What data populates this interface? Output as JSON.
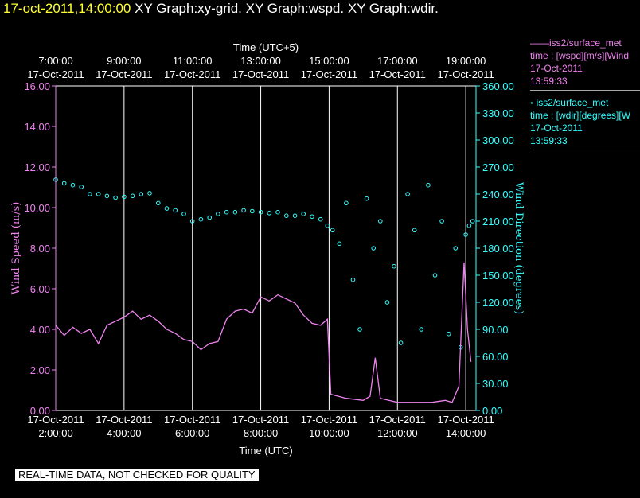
{
  "header": {
    "timestamp": "17-oct-2011,14:00:00",
    "graphs": "XY Graph:xy-grid.  XY Graph:wspd.  XY Graph:wdir."
  },
  "footer": {
    "qc_note": "REAL-TIME DATA, NOT CHECKED FOR QUALITY"
  },
  "legend": [
    {
      "marker": "——",
      "name": "iss2/surface_met",
      "desc": "time : [wspd][m/s][Wind",
      "date": "17-Oct-2011",
      "time": "13:59:33"
    },
    {
      "marker": "◦",
      "name": "iss2/surface_met",
      "desc": "time : [wdir][degrees][W",
      "date": "17-Oct-2011",
      "time": "13:59:33"
    }
  ],
  "colors": {
    "wspd": "#ee82ee",
    "wdir": "#33ffff",
    "title_time": "#ffff33",
    "grid": "#ffffff",
    "background": "#000000"
  },
  "chart_data": {
    "type": "line",
    "x_bottom_label": "Time (UTC)",
    "x_top_label": "Time (UTC+5)",
    "x_range_hours_utc": [
      2,
      14.3
    ],
    "x_bottom_ticks": [
      {
        "x": 2,
        "date": "17-Oct-2011",
        "time": "2:00:00"
      },
      {
        "x": 4,
        "date": "17-Oct-2011",
        "time": "4:00:00"
      },
      {
        "x": 6,
        "date": "17-Oct-2011",
        "time": "6:00:00"
      },
      {
        "x": 8,
        "date": "17-Oct-2011",
        "time": "8:00:00"
      },
      {
        "x": 10,
        "date": "17-Oct-2011",
        "time": "10:00:00"
      },
      {
        "x": 12,
        "date": "17-Oct-2011",
        "time": "12:00:00"
      },
      {
        "x": 14,
        "date": "17-Oct-2011",
        "time": "14:00:00"
      }
    ],
    "x_top_ticks": [
      {
        "x": 2,
        "time": "7:00:00",
        "date": "17-Oct-2011"
      },
      {
        "x": 4,
        "time": "9:00:00",
        "date": "17-Oct-2011"
      },
      {
        "x": 6,
        "time": "11:00:00",
        "date": "17-Oct-2011"
      },
      {
        "x": 8,
        "time": "13:00:00",
        "date": "17-Oct-2011"
      },
      {
        "x": 10,
        "time": "15:00:00",
        "date": "17-Oct-2011"
      },
      {
        "x": 12,
        "time": "17:00:00",
        "date": "17-Oct-2011"
      },
      {
        "x": 14,
        "time": "19:00:00",
        "date": "17-Oct-2011"
      }
    ],
    "grid": "vertical lines at each time tick",
    "left_axis": {
      "label": "Wind Speed (m/s)",
      "range": [
        0,
        16
      ],
      "ticks": [
        "0.00",
        "2.00",
        "4.00",
        "6.00",
        "8.00",
        "10.00",
        "12.00",
        "14.00",
        "16.00"
      ]
    },
    "right_axis": {
      "label": "Wind Direction (degrees)",
      "range": [
        0,
        360
      ],
      "ticks": [
        "0.00",
        "30.00",
        "60.00",
        "90.00",
        "120.00",
        "150.00",
        "180.00",
        "210.00",
        "240.00",
        "270.00",
        "300.00",
        "330.00",
        "360.00"
      ]
    },
    "series": [
      {
        "id": "wspd",
        "axis": "left",
        "style": "line",
        "x": [
          2,
          2.25,
          2.5,
          2.75,
          3,
          3.25,
          3.5,
          3.75,
          4,
          4.25,
          4.5,
          4.75,
          5,
          5.25,
          5.5,
          5.75,
          6,
          6.25,
          6.5,
          6.75,
          7,
          7.25,
          7.5,
          7.75,
          8,
          8.25,
          8.5,
          8.75,
          9,
          9.25,
          9.5,
          9.75,
          9.95,
          10.05,
          10.5,
          11,
          11.2,
          11.35,
          11.5,
          11.75,
          12,
          12.5,
          13,
          13.4,
          13.6,
          13.8,
          13.95,
          14.05,
          14.15
        ],
        "y": [
          4.2,
          3.7,
          4.1,
          3.8,
          4.0,
          3.3,
          4.2,
          4.4,
          4.6,
          4.9,
          4.5,
          4.7,
          4.4,
          4.0,
          3.8,
          3.5,
          3.4,
          3.0,
          3.3,
          3.4,
          4.5,
          4.9,
          5.0,
          4.8,
          5.6,
          5.4,
          5.7,
          5.5,
          5.3,
          4.7,
          4.3,
          4.2,
          4.5,
          0.8,
          0.6,
          0.5,
          0.7,
          2.6,
          0.6,
          0.5,
          0.4,
          0.4,
          0.4,
          0.5,
          0.4,
          1.2,
          7.3,
          4.0,
          2.4
        ]
      },
      {
        "id": "wdir",
        "axis": "right",
        "style": "markers",
        "x": [
          2,
          2.25,
          2.5,
          2.75,
          3,
          3.25,
          3.5,
          3.75,
          4,
          4.25,
          4.5,
          4.75,
          5,
          5.25,
          5.5,
          5.75,
          6,
          6.25,
          6.5,
          6.75,
          7,
          7.25,
          7.5,
          7.75,
          8,
          8.25,
          8.5,
          8.75,
          9,
          9.25,
          9.5,
          9.75,
          9.95,
          10.1,
          10.3,
          10.5,
          10.7,
          10.9,
          11.1,
          11.3,
          11.5,
          11.7,
          11.9,
          12.1,
          12.3,
          12.5,
          12.7,
          12.9,
          13.1,
          13.3,
          13.5,
          13.7,
          13.85,
          14.0,
          14.1,
          14.2
        ],
        "y": [
          256,
          252,
          250,
          248,
          240,
          240,
          238,
          236,
          237,
          238,
          240,
          241,
          230,
          224,
          222,
          218,
          210,
          212,
          214,
          218,
          220,
          220,
          222,
          221,
          220,
          219,
          220,
          216,
          216,
          218,
          215,
          212,
          205,
          200,
          185,
          230,
          145,
          90,
          235,
          180,
          210,
          120,
          160,
          75,
          240,
          200,
          90,
          250,
          150,
          210,
          85,
          180,
          70,
          195,
          205,
          210
        ]
      }
    ]
  }
}
